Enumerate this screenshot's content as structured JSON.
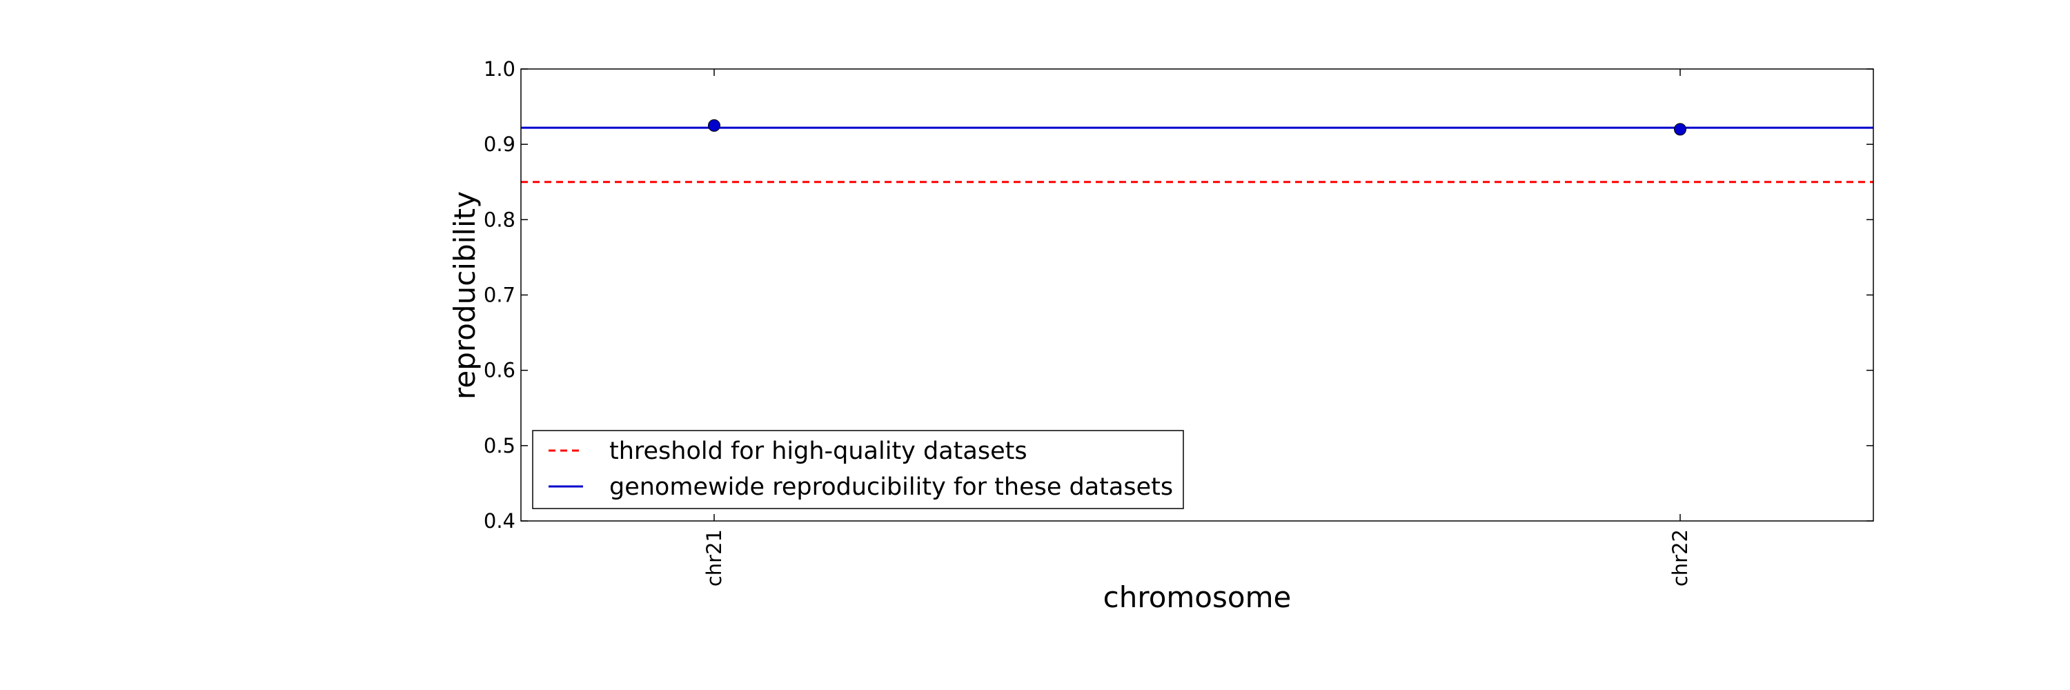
{
  "chart_data": {
    "type": "scatter",
    "title": "",
    "xlabel": "chromosome",
    "ylabel": "reproducibility",
    "categories": [
      "chr21",
      "chr22"
    ],
    "ylim": [
      0.4,
      1.0
    ],
    "yticks": [
      "0.4",
      "0.5",
      "0.6",
      "0.7",
      "0.8",
      "0.9",
      "1.0"
    ],
    "series": [
      {
        "values": [
          0.925,
          0.92
        ],
        "color": "#0000cc",
        "marker": "circle"
      }
    ],
    "reference_lines": [
      {
        "name": "threshold for high-quality datasets",
        "y": 0.85,
        "color": "#ff0000",
        "style": "dashed"
      },
      {
        "name": "genomewide reproducibility for these datasets",
        "y": 0.922,
        "color": "#0000cc",
        "style": "solid"
      }
    ],
    "legend_position": "lower-left",
    "grid": false
  }
}
